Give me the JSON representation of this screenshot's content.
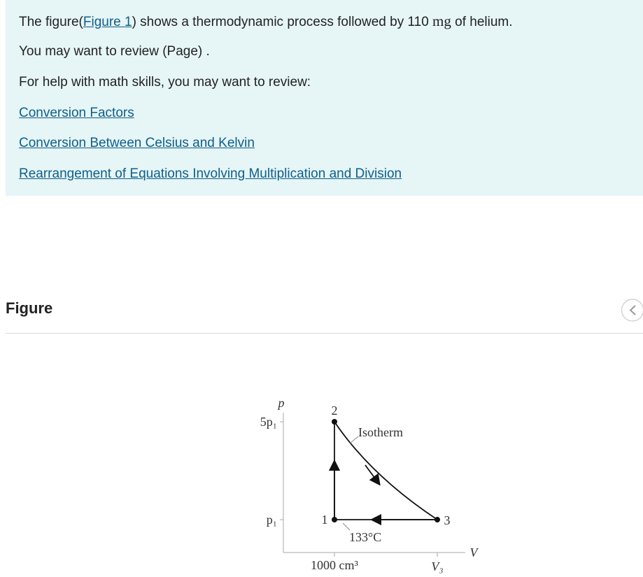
{
  "info": {
    "intro": {
      "before": "The figure(",
      "link": "Figure 1",
      "after": ") shows a thermodynamic process followed by 110 ",
      "unit": "mg",
      "end": " of helium."
    },
    "review": "You may want to review (Page) .",
    "help": "For help with math skills, you may want to review:",
    "links": [
      "Conversion Factors",
      "Conversion Between Celsius and Kelvin",
      "Rearrangement of Equations Involving Multiplication and Division"
    ]
  },
  "figure": {
    "title": "Figure",
    "diagram": {
      "y_axis": "p",
      "x_axis": "V",
      "y_labels": [
        "5p₁",
        "p₁"
      ],
      "x_labels": [
        "1000 cm³",
        "V₃"
      ],
      "points": [
        "1",
        "2",
        "3"
      ],
      "isotherm": "Isotherm",
      "temperature": "133°C"
    }
  }
}
